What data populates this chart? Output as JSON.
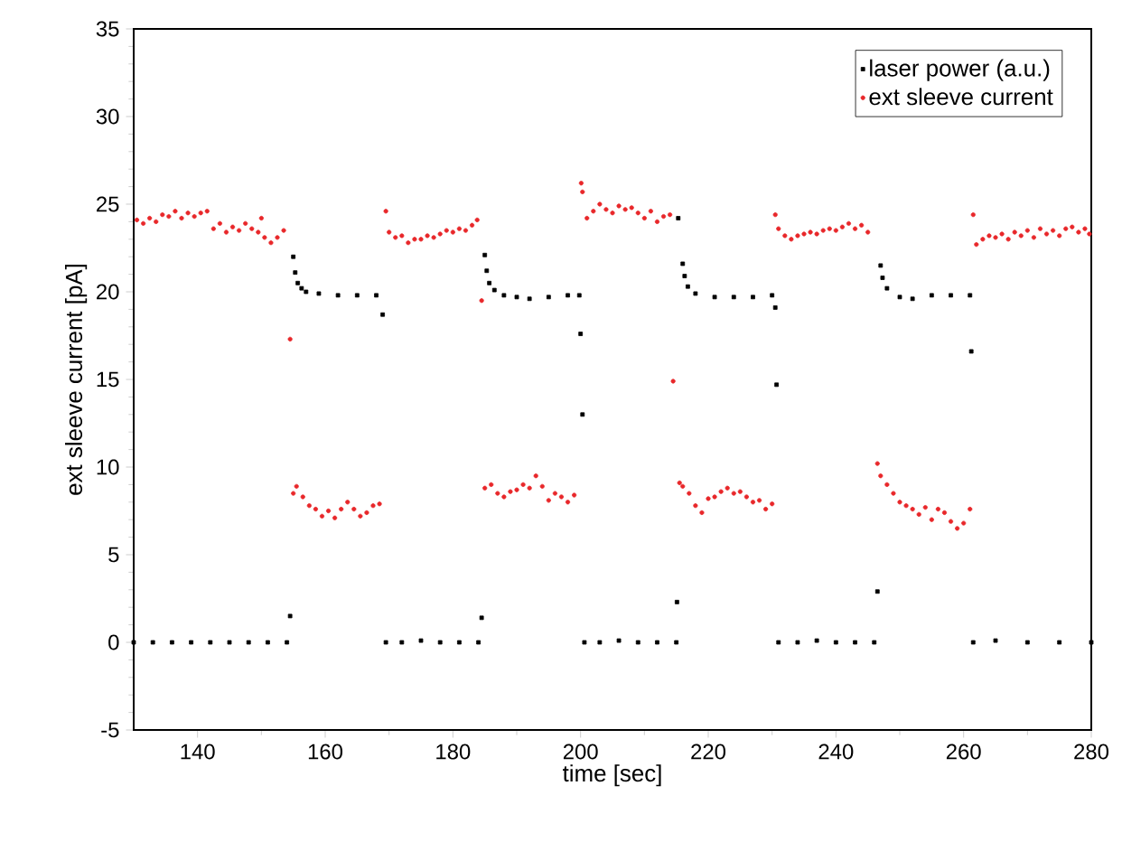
{
  "chart_data": {
    "type": "scatter",
    "xlabel": "time [sec]",
    "ylabel": "ext sleeve current [pA]",
    "xlim": [
      130,
      280
    ],
    "xticks": [
      140,
      160,
      180,
      200,
      220,
      240,
      260,
      280
    ],
    "ylim": [
      -5,
      35
    ],
    "yticks": [
      -5,
      0,
      5,
      10,
      15,
      20,
      25,
      30,
      35
    ],
    "legend": "top right",
    "grid": false,
    "series": [
      {
        "name": "laser power (a.u.)",
        "color": "#000000",
        "marker": "square",
        "x": [
          130,
          133,
          136,
          139,
          142,
          145,
          148,
          151,
          154,
          154.5,
          155,
          155.3,
          155.7,
          156.3,
          157,
          159,
          162,
          165,
          168,
          169,
          169.5,
          172,
          175,
          178,
          181,
          184,
          184.5,
          185,
          185.3,
          185.7,
          186.5,
          188,
          190,
          192,
          195,
          198,
          199.8,
          200,
          200.3,
          200.6,
          203,
          206,
          209,
          212,
          215,
          215.1,
          215.3,
          216,
          216.3,
          216.8,
          218,
          221,
          224,
          227,
          230,
          230.5,
          230.7,
          231,
          234,
          237,
          240,
          243,
          246,
          246.5,
          247,
          247.3,
          248,
          250,
          252,
          255,
          258,
          261,
          261.2,
          261.5,
          265,
          270,
          275,
          280
        ],
        "values": [
          0,
          0,
          0,
          0,
          0,
          0,
          0,
          0,
          0,
          1.5,
          22.0,
          21.1,
          20.5,
          20.2,
          20.0,
          19.9,
          19.8,
          19.8,
          19.8,
          18.7,
          0,
          0,
          0.1,
          0,
          0,
          0,
          1.4,
          22.1,
          21.2,
          20.5,
          20.1,
          19.8,
          19.7,
          19.6,
          19.7,
          19.8,
          19.8,
          17.6,
          13.0,
          0,
          0,
          0.1,
          0,
          0,
          0,
          2.3,
          24.2,
          21.6,
          20.9,
          20.3,
          19.9,
          19.7,
          19.7,
          19.7,
          19.8,
          19.1,
          14.7,
          0,
          0,
          0.1,
          0,
          0,
          0,
          2.9,
          21.5,
          20.8,
          20.2,
          19.7,
          19.6,
          19.8,
          19.8,
          19.8,
          16.6,
          0,
          0.1,
          0,
          0,
          0
        ]
      },
      {
        "name": "ext sleeve current",
        "color": "#e8272a",
        "marker": "circle",
        "x": [
          130.5,
          131.5,
          132.5,
          133.5,
          134.5,
          135.5,
          136.5,
          137.5,
          138.5,
          139.5,
          140.5,
          141.5,
          142.5,
          143.5,
          144.5,
          145.5,
          146.5,
          147.5,
          148.5,
          149.5,
          150,
          150.5,
          151.5,
          152.5,
          153.5,
          154.5,
          155,
          155.5,
          156.5,
          157.5,
          158.5,
          159.5,
          160.5,
          161.5,
          162.5,
          163.5,
          164.5,
          165.5,
          166.5,
          167.5,
          168.5,
          169.5,
          170,
          171,
          172,
          173,
          174,
          175,
          176,
          177,
          178,
          179,
          180,
          181,
          182,
          183,
          183.8,
          184.5,
          185,
          186,
          187,
          188,
          189,
          190,
          191,
          192,
          193,
          194,
          195,
          196,
          197,
          198,
          199,
          200.1,
          200.3,
          201,
          202,
          203,
          204,
          205,
          206,
          207,
          208,
          209,
          210,
          211,
          212,
          213,
          214,
          214.5,
          215.5,
          216,
          217,
          218,
          219,
          220,
          221,
          222,
          223,
          224,
          225,
          226,
          227,
          228,
          229,
          230,
          230.5,
          231,
          232,
          233,
          234,
          235,
          236,
          237,
          238,
          239,
          240,
          241,
          242,
          243,
          244,
          245,
          246.5,
          247,
          248,
          249,
          250,
          251,
          252,
          253,
          254,
          255,
          256,
          257,
          258,
          259,
          260,
          261,
          261.5,
          262,
          263,
          264,
          265,
          266,
          267,
          268,
          269,
          270,
          271,
          272,
          273,
          274,
          275,
          276,
          277,
          278,
          279,
          279.7
        ],
        "values": [
          24.1,
          23.9,
          24.2,
          24.0,
          24.4,
          24.3,
          24.6,
          24.2,
          24.5,
          24.3,
          24.5,
          24.6,
          23.6,
          23.9,
          23.4,
          23.7,
          23.5,
          23.9,
          23.6,
          23.4,
          24.2,
          23.1,
          22.8,
          23.1,
          23.5,
          17.3,
          8.5,
          8.9,
          8.3,
          7.8,
          7.6,
          7.2,
          7.5,
          7.1,
          7.6,
          8.0,
          7.6,
          7.2,
          7.4,
          7.8,
          7.9,
          24.6,
          23.4,
          23.1,
          23.2,
          22.8,
          23.0,
          23.0,
          23.2,
          23.1,
          23.3,
          23.5,
          23.4,
          23.6,
          23.5,
          23.8,
          24.1,
          19.5,
          8.8,
          9.0,
          8.5,
          8.3,
          8.6,
          8.7,
          9.0,
          8.8,
          9.5,
          8.9,
          8.1,
          8.5,
          8.3,
          8.0,
          8.4,
          26.2,
          25.7,
          24.2,
          24.6,
          25.0,
          24.7,
          24.5,
          24.9,
          24.7,
          24.8,
          24.5,
          24.2,
          24.6,
          24.0,
          24.3,
          24.4,
          14.9,
          9.1,
          8.9,
          8.5,
          7.8,
          7.4,
          8.2,
          8.3,
          8.6,
          8.8,
          8.5,
          8.6,
          8.3,
          8.0,
          8.1,
          7.6,
          7.9,
          24.4,
          23.6,
          23.2,
          23.0,
          23.2,
          23.3,
          23.4,
          23.3,
          23.5,
          23.6,
          23.5,
          23.7,
          23.9,
          23.6,
          23.8,
          23.4,
          10.2,
          9.5,
          9.0,
          8.5,
          8.0,
          7.8,
          7.6,
          7.3,
          7.7,
          7.0,
          7.6,
          7.4,
          6.9,
          6.5,
          6.8,
          7.6,
          24.4,
          22.7,
          23.0,
          23.2,
          23.1,
          23.3,
          23.0,
          23.4,
          23.2,
          23.5,
          23.1,
          23.6,
          23.3,
          23.5,
          23.2,
          23.6,
          23.7,
          23.4,
          23.6,
          23.3
        ]
      }
    ]
  }
}
